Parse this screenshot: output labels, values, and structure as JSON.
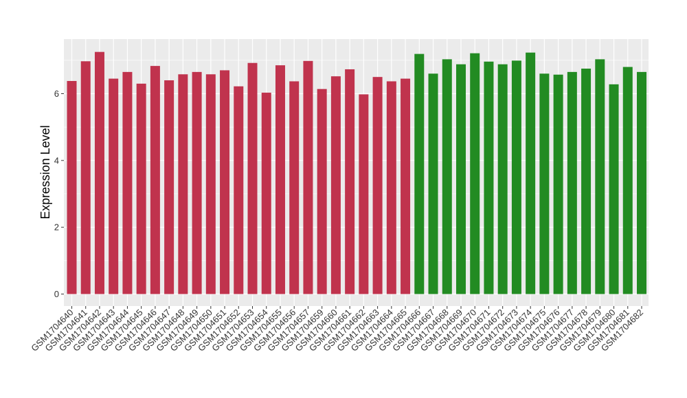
{
  "chart_data": {
    "type": "bar",
    "title": "",
    "xlabel": "",
    "ylabel": "Expression Level",
    "ylim": [
      0,
      7.5
    ],
    "yticks": [
      0,
      2,
      4,
      6
    ],
    "grid": true,
    "legend": "none",
    "background_color": "#ebebeb",
    "grid_color": "#ffffff",
    "categories": [
      "GSM1704640",
      "GSM1704641",
      "GSM1704642",
      "GSM1704643",
      "GSM1704644",
      "GSM1704645",
      "GSM1704646",
      "GSM1704647",
      "GSM1704648",
      "GSM1704649",
      "GSM1704650",
      "GSM1704651",
      "GSM1704652",
      "GSM1704653",
      "GSM1704654",
      "GSM1704655",
      "GSM1704656",
      "GSM1704657",
      "GSM1704659",
      "GSM1704660",
      "GSM1704661",
      "GSM1704662",
      "GSM1704663",
      "GSM1704664",
      "GSM1704665",
      "GSM1704666",
      "GSM1704667",
      "GSM1704668",
      "GSM1704669",
      "GSM1704670",
      "GSM1704671",
      "GSM1704672",
      "GSM1704673",
      "GSM1704674",
      "GSM1704675",
      "GSM1704676",
      "GSM1704677",
      "GSM1704678",
      "GSM1704679",
      "GSM1704680",
      "GSM1704681",
      "GSM1704682"
    ],
    "values": [
      6.38,
      6.97,
      7.25,
      6.45,
      6.65,
      6.3,
      6.83,
      6.4,
      6.58,
      6.65,
      6.58,
      6.7,
      6.22,
      6.92,
      6.03,
      6.85,
      6.37,
      6.98,
      6.14,
      6.52,
      6.73,
      5.98,
      6.5,
      6.37,
      6.45,
      7.19,
      6.6,
      7.03,
      6.88,
      7.21,
      6.96,
      6.88,
      6.99,
      7.23,
      6.6,
      6.57,
      6.65,
      6.75,
      7.03,
      6.28,
      6.8,
      6.65
    ],
    "bar_colors": [
      "#c0334d",
      "#c0334d",
      "#c0334d",
      "#c0334d",
      "#c0334d",
      "#c0334d",
      "#c0334d",
      "#c0334d",
      "#c0334d",
      "#c0334d",
      "#c0334d",
      "#c0334d",
      "#c0334d",
      "#c0334d",
      "#c0334d",
      "#c0334d",
      "#c0334d",
      "#c0334d",
      "#c0334d",
      "#c0334d",
      "#c0334d",
      "#c0334d",
      "#c0334d",
      "#c0334d",
      "#c0334d",
      "#228b22",
      "#228b22",
      "#228b22",
      "#228b22",
      "#228b22",
      "#228b22",
      "#228b22",
      "#228b22",
      "#228b22",
      "#228b22",
      "#228b22",
      "#228b22",
      "#228b22",
      "#228b22",
      "#228b22",
      "#228b22",
      "#228b22"
    ]
  }
}
